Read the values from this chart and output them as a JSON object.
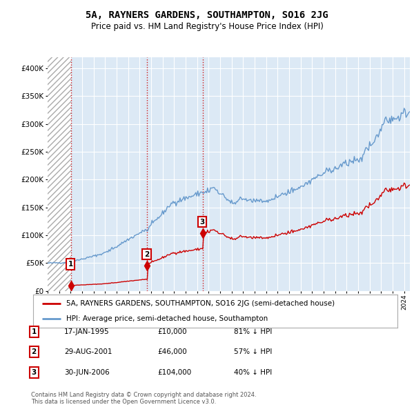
{
  "title": "5A, RAYNERS GARDENS, SOUTHAMPTON, SO16 2JG",
  "subtitle": "Price paid vs. HM Land Registry's House Price Index (HPI)",
  "legend_label_red": "5A, RAYNERS GARDENS, SOUTHAMPTON, SO16 2JG (semi-detached house)",
  "legend_label_blue": "HPI: Average price, semi-detached house, Southampton",
  "footnote": "Contains HM Land Registry data © Crown copyright and database right 2024.\nThis data is licensed under the Open Government Licence v3.0.",
  "sales": [
    {
      "date_num": 1995.04,
      "price": 10000,
      "label": "1"
    },
    {
      "date_num": 2001.66,
      "price": 46000,
      "label": "2"
    },
    {
      "date_num": 2006.49,
      "price": 104000,
      "label": "3"
    }
  ],
  "table_rows": [
    {
      "label": "1",
      "date": "17-JAN-1995",
      "price": "£10,000",
      "hpi": "81% ↓ HPI"
    },
    {
      "label": "2",
      "date": "29-AUG-2001",
      "price": "£46,000",
      "hpi": "57% ↓ HPI"
    },
    {
      "label": "3",
      "date": "30-JUN-2006",
      "price": "£104,000",
      "hpi": "40% ↓ HPI"
    }
  ],
  "ylim": [
    0,
    420000
  ],
  "xlim_start": 1993.0,
  "xlim_end": 2024.5,
  "hatch_end": 1995.04,
  "background_color": "#ffffff",
  "plot_bg_color": "#dce9f5",
  "hatch_color": "#aaaaaa",
  "grid_color": "#ffffff",
  "red_line_color": "#cc0000",
  "blue_line_color": "#6699cc",
  "sale_dot_color": "#cc0000",
  "dashed_line_color": "#cc0000"
}
